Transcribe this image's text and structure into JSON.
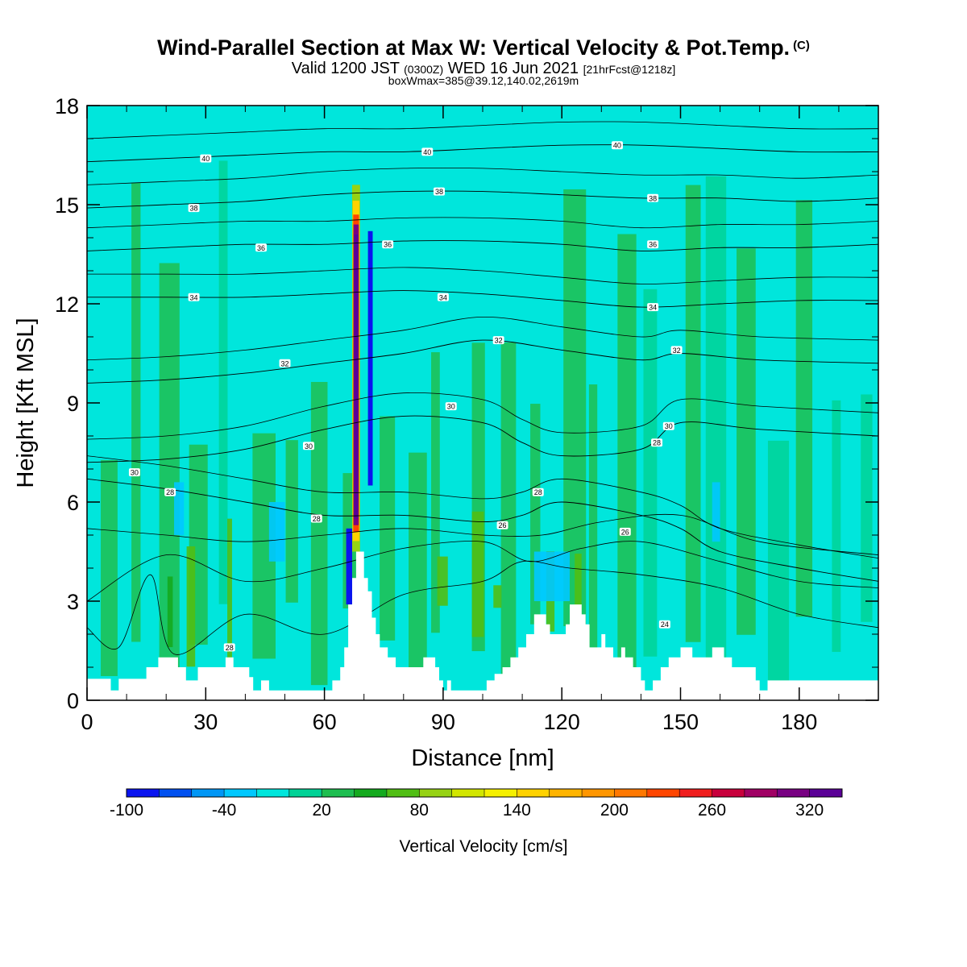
{
  "title": {
    "main": "Wind-Parallel Section at Max W: Vertical Velocity & Pot.Temp.",
    "copyright": "(C)",
    "valid_prefix": "Valid 1200 JST",
    "valid_utc": "(0300Z)",
    "valid_date": "WED 16 Jun 2021",
    "forecast": "[21hrFcst@1218z]",
    "boxmax": "boxWmax=385@39.12,140.02,2619m"
  },
  "chart_data": {
    "type": "heatmap",
    "xlabel": "Distance [nm]",
    "ylabel": "Height [Kft MSL]",
    "xlim": [
      0,
      200
    ],
    "ylim": [
      0,
      18
    ],
    "x_ticks": [
      0,
      30,
      60,
      90,
      120,
      150,
      180
    ],
    "y_ticks": [
      0,
      3,
      6,
      9,
      12,
      15,
      18
    ],
    "colorbar": {
      "label": "Vertical Velocity [cm/s]",
      "tick_labels": [
        -100,
        -40,
        20,
        80,
        140,
        200,
        260,
        320
      ],
      "levels": [
        -100,
        -80,
        -60,
        -40,
        -20,
        0,
        20,
        40,
        60,
        80,
        100,
        120,
        140,
        160,
        180,
        200,
        220,
        240,
        260,
        280,
        300,
        320,
        340
      ],
      "colors": [
        "#0a14f0",
        "#0050f0",
        "#0096f5",
        "#00c8ff",
        "#00e6dc",
        "#00d296",
        "#1ebe50",
        "#14aa1e",
        "#50be14",
        "#96d214",
        "#d2e600",
        "#f5f000",
        "#ffd200",
        "#ffb400",
        "#ff9600",
        "#ff7800",
        "#ff4600",
        "#f01e1e",
        "#c8003c",
        "#a00064",
        "#780082",
        "#5a0096"
      ]
    },
    "background_color": "#00e6dc",
    "terrain": [
      [
        0,
        0.65
      ],
      [
        6,
        0.65
      ],
      [
        6,
        0.3
      ],
      [
        8,
        0.3
      ],
      [
        8,
        0.65
      ],
      [
        15,
        0.65
      ],
      [
        15,
        1.0
      ],
      [
        18,
        1.0
      ],
      [
        18,
        1.3
      ],
      [
        23,
        1.3
      ],
      [
        23,
        1.0
      ],
      [
        25,
        1.0
      ],
      [
        25,
        0.6
      ],
      [
        28,
        0.6
      ],
      [
        28,
        1.0
      ],
      [
        35,
        1.0
      ],
      [
        35,
        1.3
      ],
      [
        37,
        1.3
      ],
      [
        37,
        1.0
      ],
      [
        41,
        1.0
      ],
      [
        41,
        0.7
      ],
      [
        42,
        0.7
      ],
      [
        42,
        0.3
      ],
      [
        44,
        0.3
      ],
      [
        44,
        0.6
      ],
      [
        46,
        0.6
      ],
      [
        46,
        0.3
      ],
      [
        62,
        0.3
      ],
      [
        62,
        0.6
      ],
      [
        64,
        0.6
      ],
      [
        64,
        1.0
      ],
      [
        65,
        1.0
      ],
      [
        65,
        1.6
      ],
      [
        66,
        1.6
      ],
      [
        66,
        2.9
      ],
      [
        67,
        2.9
      ],
      [
        67,
        3.7
      ],
      [
        68,
        3.7
      ],
      [
        68,
        4.5
      ],
      [
        70,
        4.5
      ],
      [
        70,
        3.7
      ],
      [
        71,
        3.7
      ],
      [
        71,
        3.3
      ],
      [
        72,
        3.3
      ],
      [
        72,
        2.5
      ],
      [
        73,
        2.5
      ],
      [
        73,
        2.0
      ],
      [
        74,
        2.0
      ],
      [
        74,
        1.6
      ],
      [
        76,
        1.6
      ],
      [
        76,
        1.3
      ],
      [
        78,
        1.3
      ],
      [
        78,
        1.0
      ],
      [
        85,
        1.0
      ],
      [
        85,
        1.3
      ],
      [
        88,
        1.3
      ],
      [
        88,
        1.0
      ],
      [
        89,
        1.0
      ],
      [
        89,
        0.6
      ],
      [
        90,
        0.6
      ],
      [
        90,
        0.3
      ],
      [
        91,
        0.3
      ],
      [
        91,
        0.6
      ],
      [
        92,
        0.6
      ],
      [
        92,
        0.3
      ],
      [
        101,
        0.3
      ],
      [
        101,
        0.6
      ],
      [
        103,
        0.6
      ],
      [
        103,
        0.8
      ],
      [
        105,
        0.8
      ],
      [
        105,
        1.0
      ],
      [
        107,
        1.0
      ],
      [
        107,
        1.3
      ],
      [
        109,
        1.3
      ],
      [
        109,
        1.6
      ],
      [
        111,
        1.6
      ],
      [
        111,
        2.0
      ],
      [
        113,
        2.0
      ],
      [
        113,
        2.6
      ],
      [
        116,
        2.6
      ],
      [
        116,
        2.3
      ],
      [
        117,
        2.3
      ],
      [
        117,
        2.0
      ],
      [
        121,
        2.0
      ],
      [
        121,
        2.3
      ],
      [
        122,
        2.3
      ],
      [
        122,
        2.9
      ],
      [
        125,
        2.9
      ],
      [
        125,
        2.6
      ],
      [
        126,
        2.6
      ],
      [
        126,
        2.3
      ],
      [
        127,
        2.3
      ],
      [
        127,
        1.6
      ],
      [
        130,
        1.6
      ],
      [
        130,
        2.0
      ],
      [
        131,
        2.0
      ],
      [
        131,
        1.6
      ],
      [
        133,
        1.6
      ],
      [
        133,
        1.3
      ],
      [
        135,
        1.3
      ],
      [
        135,
        1.6
      ],
      [
        136,
        1.6
      ],
      [
        136,
        1.3
      ],
      [
        138,
        1.3
      ],
      [
        138,
        1.0
      ],
      [
        140,
        1.0
      ],
      [
        140,
        0.6
      ],
      [
        141,
        0.6
      ],
      [
        141,
        0.3
      ],
      [
        143,
        0.3
      ],
      [
        143,
        0.6
      ],
      [
        145,
        0.6
      ],
      [
        145,
        1.0
      ],
      [
        147,
        1.0
      ],
      [
        147,
        1.3
      ],
      [
        150,
        1.3
      ],
      [
        150,
        1.6
      ],
      [
        153,
        1.6
      ],
      [
        153,
        1.3
      ],
      [
        158,
        1.3
      ],
      [
        158,
        1.6
      ],
      [
        161,
        1.6
      ],
      [
        161,
        1.3
      ],
      [
        163,
        1.3
      ],
      [
        163,
        1.0
      ],
      [
        169,
        1.0
      ],
      [
        169,
        0.6
      ],
      [
        170,
        0.6
      ],
      [
        170,
        0.3
      ],
      [
        172,
        0.3
      ],
      [
        172,
        0.6
      ],
      [
        200,
        0.6
      ]
    ],
    "updraft_core": {
      "x_range": [
        67,
        69
      ],
      "y_range": [
        4.5,
        15.6
      ],
      "max_cm_s": 385,
      "downdraft_x": 71,
      "downdraft_min_cm_s": -100
    },
    "theta_contours": [
      {
        "level": 28,
        "label": "28",
        "points": [
          [
            0,
            6.7
          ],
          [
            20,
            6.4
          ],
          [
            40,
            6.0
          ],
          [
            60,
            5.6
          ],
          [
            80,
            5.6
          ],
          [
            100,
            5.4
          ],
          [
            110,
            5.6
          ],
          [
            120,
            6.0
          ],
          [
            140,
            5.6
          ],
          [
            150,
            5.2
          ],
          [
            160,
            4.5
          ],
          [
            180,
            4.0
          ],
          [
            200,
            3.6
          ]
        ]
      },
      {
        "level": 30,
        "label": "30",
        "points": [
          [
            0,
            7.2
          ],
          [
            20,
            7.3
          ],
          [
            40,
            7.6
          ],
          [
            60,
            8.2
          ],
          [
            80,
            8.6
          ],
          [
            100,
            8.4
          ],
          [
            110,
            7.8
          ],
          [
            120,
            7.4
          ],
          [
            140,
            7.6
          ],
          [
            150,
            8.4
          ],
          [
            170,
            8.2
          ],
          [
            200,
            8.0
          ]
        ]
      },
      {
        "level": 32,
        "label": "32",
        "points": [
          [
            0,
            9.6
          ],
          [
            20,
            9.7
          ],
          [
            40,
            9.9
          ],
          [
            60,
            10.2
          ],
          [
            80,
            10.5
          ],
          [
            100,
            10.9
          ],
          [
            120,
            10.6
          ],
          [
            140,
            10.3
          ],
          [
            150,
            10.5
          ],
          [
            170,
            10.3
          ],
          [
            200,
            10.2
          ]
        ]
      },
      {
        "level": 34,
        "label": "34",
        "points": [
          [
            0,
            12.2
          ],
          [
            20,
            12.2
          ],
          [
            40,
            12.2
          ],
          [
            60,
            12.3
          ],
          [
            80,
            12.4
          ],
          [
            100,
            12.3
          ],
          [
            120,
            12.1
          ],
          [
            140,
            11.9
          ],
          [
            160,
            12.0
          ],
          [
            180,
            12.1
          ],
          [
            200,
            12.1
          ]
        ]
      },
      {
        "level": 36,
        "label": "36",
        "points": [
          [
            0,
            13.6
          ],
          [
            20,
            13.7
          ],
          [
            40,
            13.8
          ],
          [
            60,
            13.8
          ],
          [
            80,
            13.9
          ],
          [
            100,
            13.9
          ],
          [
            120,
            13.8
          ],
          [
            140,
            13.6
          ],
          [
            160,
            13.7
          ],
          [
            180,
            13.7
          ],
          [
            200,
            13.8
          ]
        ]
      },
      {
        "level": 38,
        "label": "38",
        "points": [
          [
            0,
            14.9
          ],
          [
            20,
            15.0
          ],
          [
            40,
            15.1
          ],
          [
            60,
            15.3
          ],
          [
            80,
            15.4
          ],
          [
            100,
            15.4
          ],
          [
            120,
            15.3
          ],
          [
            140,
            15.2
          ],
          [
            160,
            15.2
          ],
          [
            180,
            15.1
          ],
          [
            200,
            15.2
          ]
        ]
      },
      {
        "level": 40,
        "label": "40",
        "points": [
          [
            0,
            16.3
          ],
          [
            20,
            16.4
          ],
          [
            40,
            16.5
          ],
          [
            60,
            16.6
          ],
          [
            80,
            16.6
          ],
          [
            100,
            16.7
          ],
          [
            120,
            16.8
          ],
          [
            140,
            16.8
          ],
          [
            160,
            16.7
          ],
          [
            180,
            16.6
          ],
          [
            200,
            16.6
          ]
        ]
      }
    ],
    "contour_labels": [
      {
        "text": "40",
        "x": 30,
        "y": 16.4
      },
      {
        "text": "40",
        "x": 86,
        "y": 16.6
      },
      {
        "text": "40",
        "x": 134,
        "y": 16.8
      },
      {
        "text": "38",
        "x": 27,
        "y": 14.9
      },
      {
        "text": "38",
        "x": 89,
        "y": 15.4
      },
      {
        "text": "38",
        "x": 143,
        "y": 15.2
      },
      {
        "text": "36",
        "x": 44,
        "y": 13.7
      },
      {
        "text": "36",
        "x": 76,
        "y": 13.8
      },
      {
        "text": "36",
        "x": 143,
        "y": 13.8
      },
      {
        "text": "34",
        "x": 27,
        "y": 12.2
      },
      {
        "text": "34",
        "x": 90,
        "y": 12.2
      },
      {
        "text": "34",
        "x": 143,
        "y": 11.9
      },
      {
        "text": "32",
        "x": 50,
        "y": 10.2
      },
      {
        "text": "32",
        "x": 104,
        "y": 10.9
      },
      {
        "text": "32",
        "x": 149,
        "y": 10.6
      },
      {
        "text": "30",
        "x": 12,
        "y": 6.9
      },
      {
        "text": "30",
        "x": 56,
        "y": 7.7
      },
      {
        "text": "30",
        "x": 92,
        "y": 8.9
      },
      {
        "text": "30",
        "x": 147,
        "y": 8.3
      },
      {
        "text": "28",
        "x": 21,
        "y": 6.3
      },
      {
        "text": "28",
        "x": 58,
        "y": 5.5
      },
      {
        "text": "28",
        "x": 114,
        "y": 6.3
      },
      {
        "text": "28",
        "x": 144,
        "y": 7.8
      },
      {
        "text": "26",
        "x": 105,
        "y": 5.3
      },
      {
        "text": "26",
        "x": 136,
        "y": 5.1
      },
      {
        "text": "24",
        "x": 146,
        "y": 2.3
      },
      {
        "text": "28",
        "x": 36,
        "y": 1.6
      }
    ]
  }
}
